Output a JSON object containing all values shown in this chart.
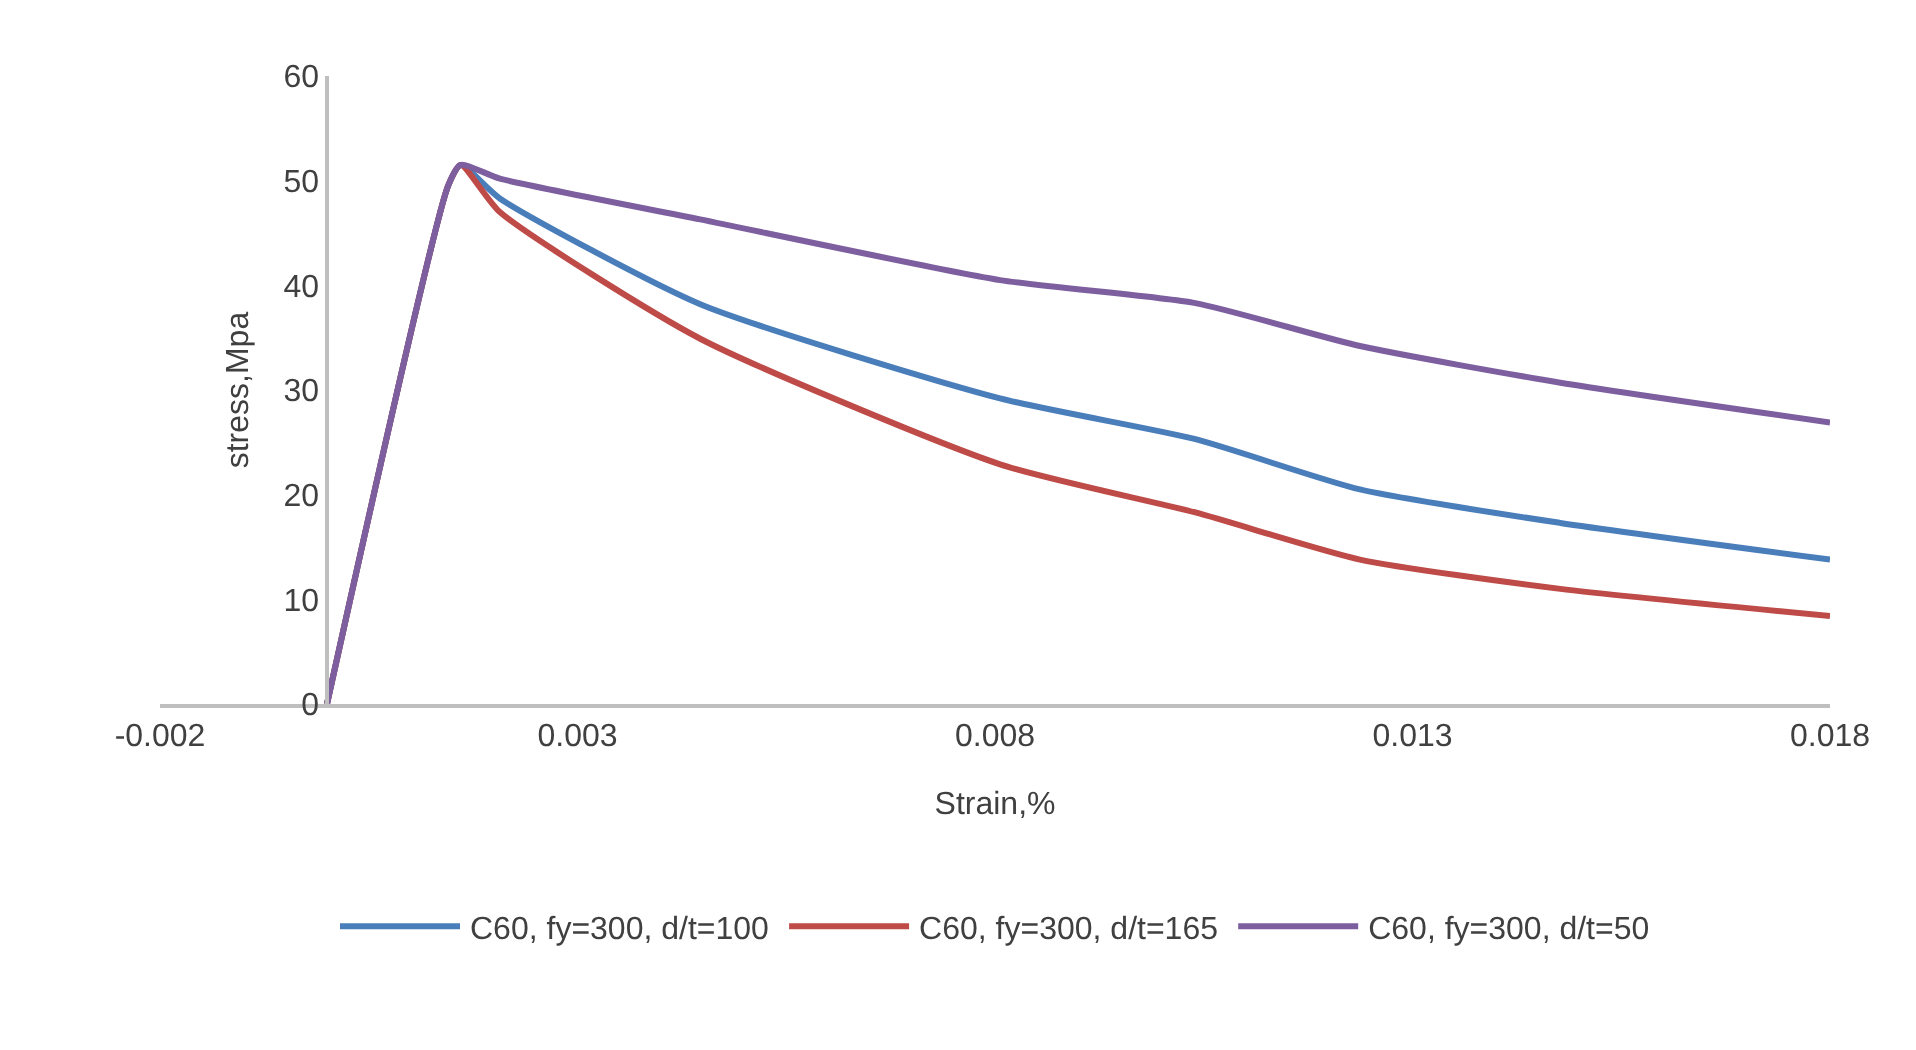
{
  "chart_data": {
    "type": "line",
    "xlabel": "Strain,%",
    "ylabel": "stress,Mpa",
    "xlim": [
      -0.002,
      0.018
    ],
    "xticks": [
      -0.002,
      0.003,
      0.008,
      0.013,
      0.018
    ],
    "ylim": [
      0,
      60
    ],
    "yticks": [
      0,
      10,
      20,
      30,
      40,
      50,
      60
    ],
    "grid": false,
    "legend": "bottom",
    "marker": "none",
    "line_style": "solid",
    "series": [
      {
        "name": "C60, fy=300, d/t=100",
        "color": "#4a7ebb",
        "x": [
          0,
          0.00145,
          0.0016,
          0.00207,
          0.00447,
          0.00806,
          0.0104,
          0.01237,
          0.01477,
          0.018
        ],
        "values": [
          0,
          49.5,
          51.5,
          48.3,
          38.2,
          29.2,
          25.3,
          20.5,
          17.3,
          13.8
        ]
      },
      {
        "name": "C60, fy=300, d/t=165",
        "color": "#be4b48",
        "x": [
          0,
          0.00145,
          0.0016,
          0.00207,
          0.00447,
          0.00806,
          0.0104,
          0.01237,
          0.01477,
          0.018
        ],
        "values": [
          0,
          49.5,
          51.5,
          47.0,
          34.9,
          22.9,
          18.3,
          13.8,
          11.0,
          8.4
        ]
      },
      {
        "name": "C60, fy=300, d/t=50",
        "color": "#7d5fa0",
        "x": [
          0,
          0.00145,
          0.0016,
          0.00207,
          0.00447,
          0.00806,
          0.0104,
          0.01237,
          0.01477,
          0.018
        ],
        "values": [
          0,
          49.5,
          51.5,
          50.2,
          46.3,
          40.5,
          38.3,
          34.2,
          30.7,
          26.9
        ]
      }
    ]
  }
}
